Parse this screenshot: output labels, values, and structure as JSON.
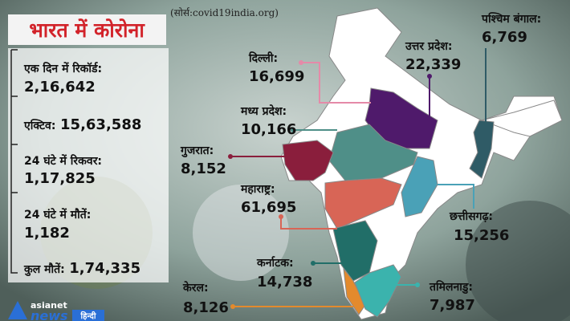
{
  "header": {
    "title": "भारत में कोरोना",
    "source": "(सोर्स:covid19india.org)"
  },
  "stats": [
    {
      "label": "एक दिन में रिकॉर्ड:",
      "value": "2,16,642"
    },
    {
      "label": "एक्टिव:",
      "value": "15,63,588"
    },
    {
      "label": "24 घंटे में रिकवर:",
      "value": "1,17,825"
    },
    {
      "label": "24 घंटे में मौतें:",
      "value": "1,182"
    },
    {
      "label": "कुल मौतें:",
      "value": "1,74,335"
    }
  ],
  "states": [
    {
      "name": "पश्चिम बंगाल:",
      "value": "6,769"
    },
    {
      "name": "उत्तर प्रदेश:",
      "value": "22,339"
    },
    {
      "name": "दिल्ली:",
      "value": "16,699"
    },
    {
      "name": "मध्य प्रदेश:",
      "value": "10,166"
    },
    {
      "name": "गुजरात:",
      "value": "8,152"
    },
    {
      "name": "महाराष्ट्र:",
      "value": "61,695"
    },
    {
      "name": "छत्तीसगढ़:",
      "value": "15,256"
    },
    {
      "name": "कर्नाटक:",
      "value": "14,738"
    },
    {
      "name": "केरल:",
      "value": "8,126"
    },
    {
      "name": "तमिलनाडु:",
      "value": "7,987"
    }
  ],
  "brand": {
    "name": "asianet",
    "news": "news",
    "lang": "हिन्दी"
  }
}
